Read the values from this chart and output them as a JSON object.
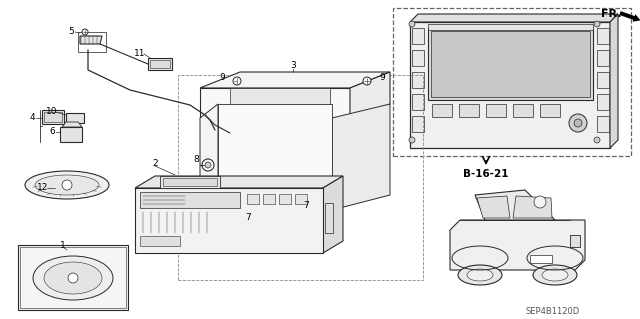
{
  "bg": "#ffffff",
  "lc": "#2a2a2a",
  "image_code": "SEP4B1120D",
  "ref_code": "B-16-21",
  "fig_width": 6.4,
  "fig_height": 3.19,
  "dpi": 100
}
